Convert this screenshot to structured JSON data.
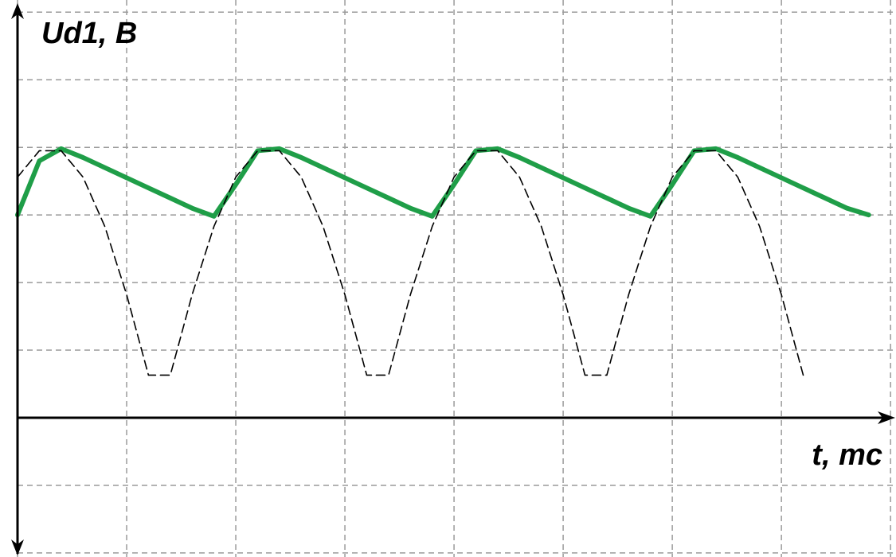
{
  "chart_data": {
    "type": "line",
    "ylabel": "Ud1, B",
    "xlabel": "t, mc",
    "x": [
      0,
      0.2,
      0.4,
      0.6,
      0.8,
      1.0,
      1.2,
      1.4,
      1.6,
      1.8,
      2.0,
      2.2,
      2.4,
      2.6,
      2.8,
      3.0,
      3.2,
      3.4,
      3.6,
      3.8,
      4.0,
      4.2,
      4.4,
      4.6,
      4.8,
      5.0,
      5.2,
      5.4,
      5.6,
      5.8,
      6.0,
      6.2,
      6.4,
      6.6,
      6.8,
      7.0,
      7.2,
      7.4,
      7.6,
      7.8
    ],
    "series": [
      {
        "color": "#1f9e48",
        "style": "solid",
        "values": [
          3.0,
          3.8,
          3.98,
          3.85,
          3.7,
          3.55,
          3.4,
          3.25,
          3.1,
          2.98,
          3.45,
          3.95,
          3.98,
          3.85,
          3.7,
          3.55,
          3.4,
          3.25,
          3.1,
          2.98,
          3.45,
          3.95,
          3.98,
          3.85,
          3.7,
          3.55,
          3.4,
          3.25,
          3.1,
          2.98,
          3.45,
          3.95,
          3.98,
          3.85,
          3.7,
          3.55,
          3.4,
          3.25,
          3.1,
          3.0
        ]
      },
      {
        "color": "#000000",
        "style": "dashed",
        "values": [
          3.56,
          3.95,
          3.95,
          3.56,
          2.83,
          1.82,
          0.63,
          0.63,
          1.82,
          2.83,
          3.56,
          3.95,
          3.95,
          3.56,
          2.83,
          1.82,
          0.63,
          0.63,
          1.82,
          2.83,
          3.56,
          3.95,
          3.95,
          3.56,
          2.83,
          1.82,
          0.63,
          0.63,
          1.82,
          2.83,
          3.56,
          3.95,
          3.95,
          3.56,
          2.83,
          1.82,
          0.63,
          null,
          null,
          null
        ]
      }
    ],
    "xlim": [
      0,
      8.05
    ],
    "ylim": [
      -2.06,
      6.18
    ],
    "xticks": [
      0,
      1,
      2,
      3,
      4,
      5,
      6,
      7,
      8
    ],
    "yticks": [
      -2,
      -1,
      0,
      1,
      2,
      3,
      4,
      5,
      6
    ],
    "grid": true
  }
}
